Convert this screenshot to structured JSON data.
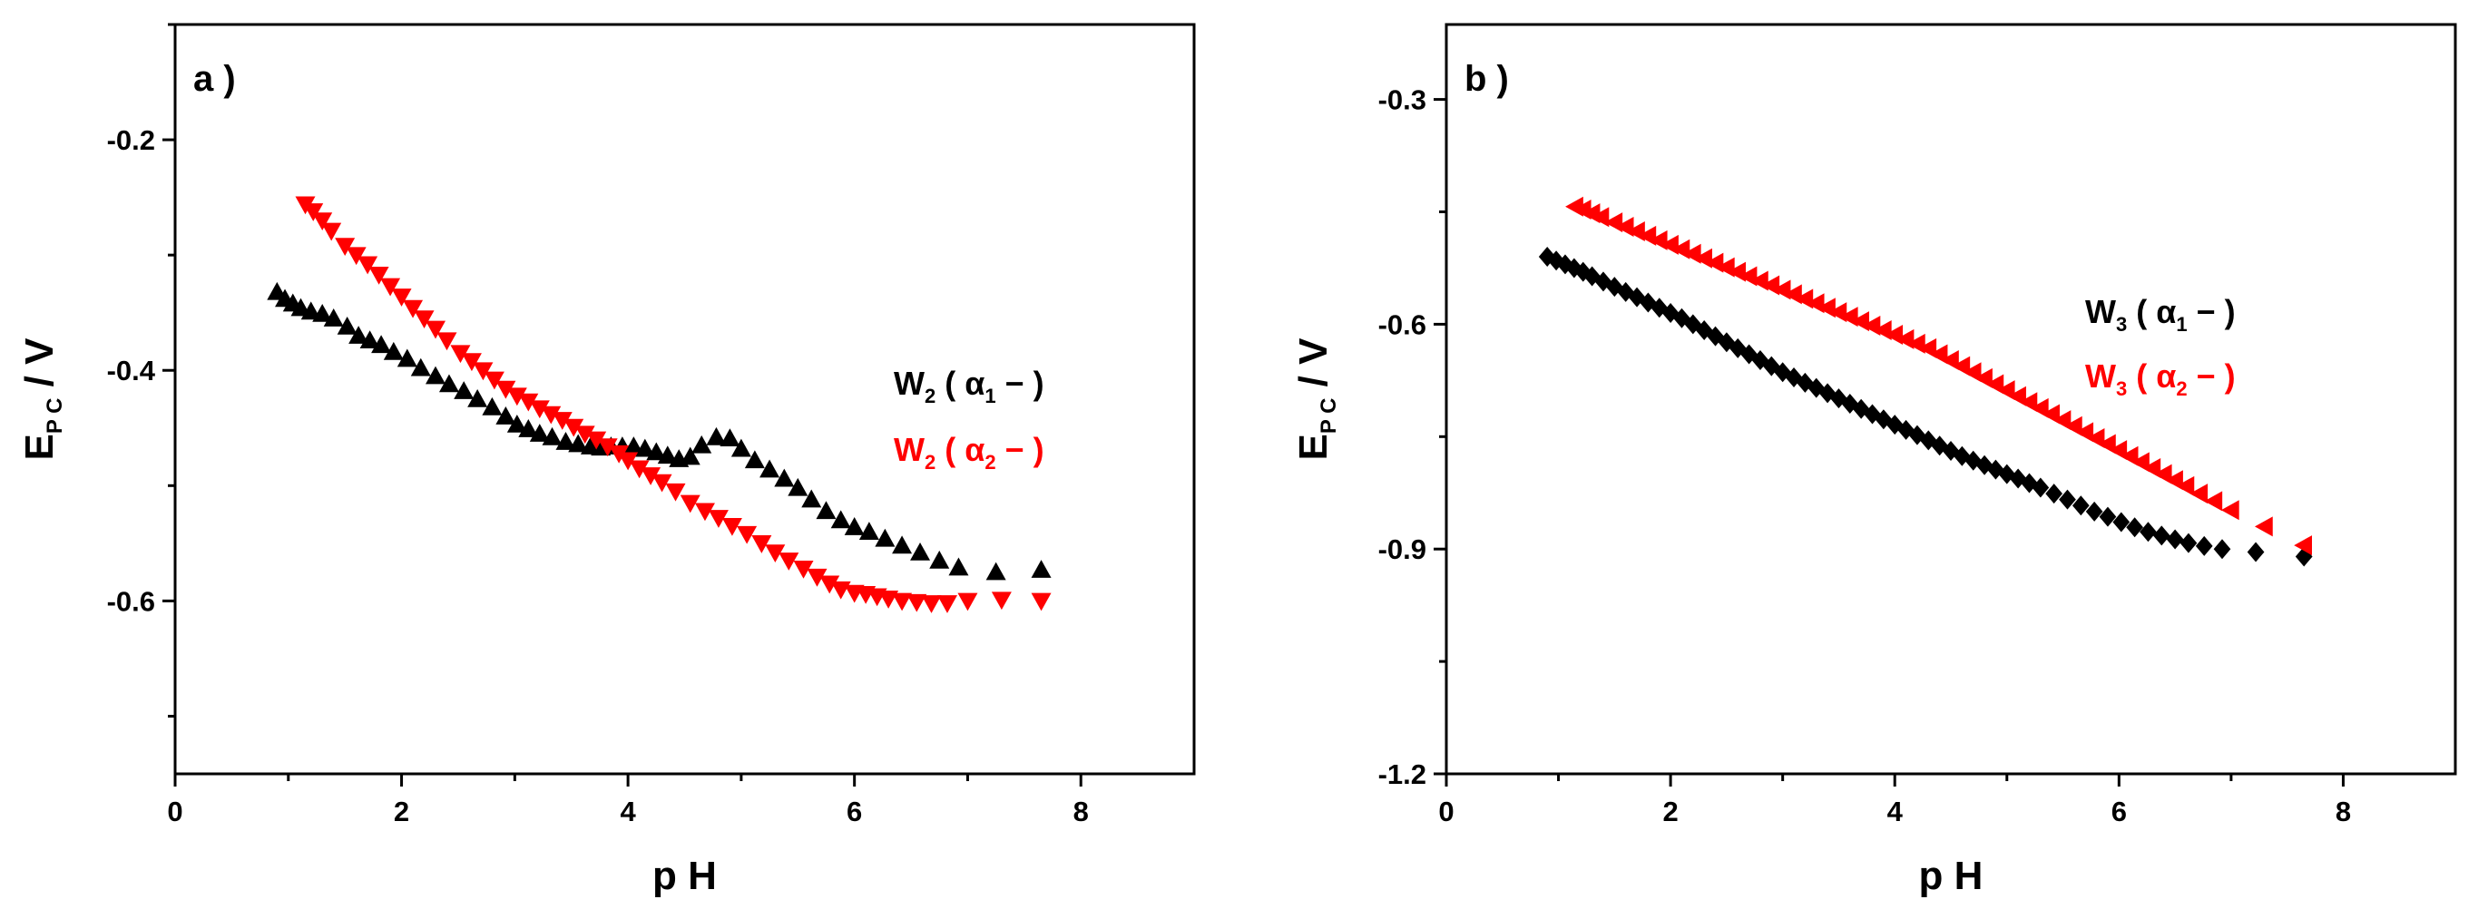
{
  "chart_data": [
    {
      "type": "scatter",
      "panel_label": "a )",
      "xlabel": "p H",
      "ylabel": {
        "main": "E",
        "sub": "P C",
        "tail": " / V"
      },
      "xlim": [
        0,
        9
      ],
      "ylim": [
        -0.75,
        -0.1
      ],
      "xticks": [
        0,
        2,
        4,
        6,
        8
      ],
      "xtick_labels": [
        "0",
        "2",
        "4",
        "6",
        "8"
      ],
      "yticks": [
        -0.2,
        -0.4,
        -0.6
      ],
      "ytick_labels": [
        "-0.2",
        "-0.4",
        "-0.6"
      ],
      "ytick_minor": [
        -0.1,
        -0.3,
        -0.5,
        -0.7
      ],
      "legend": {
        "placement": "right"
      },
      "series": [
        {
          "name": "W2(α1−)",
          "label": {
            "main": "W",
            "sub1": "2",
            "open": " ( α",
            "sub2": "1",
            "close": " − )"
          },
          "color": "#000000",
          "marker": "triangle-up",
          "x": [
            0.9,
            0.97,
            1.04,
            1.11,
            1.2,
            1.3,
            1.4,
            1.52,
            1.62,
            1.72,
            1.82,
            1.93,
            2.05,
            2.17,
            2.3,
            2.42,
            2.55,
            2.67,
            2.8,
            2.92,
            3.02,
            3.12,
            3.22,
            3.33,
            3.45,
            3.56,
            3.67,
            3.76,
            3.85,
            3.95,
            4.05,
            4.15,
            4.25,
            4.35,
            4.45,
            4.55,
            4.65,
            4.78,
            4.9,
            5.0,
            5.12,
            5.25,
            5.38,
            5.5,
            5.62,
            5.75,
            5.88,
            6.0,
            6.13,
            6.27,
            6.42,
            6.58,
            6.75,
            6.92,
            7.25,
            7.65
          ],
          "y": [
            -0.332,
            -0.338,
            -0.342,
            -0.346,
            -0.349,
            -0.351,
            -0.355,
            -0.362,
            -0.37,
            -0.374,
            -0.378,
            -0.384,
            -0.39,
            -0.398,
            -0.405,
            -0.412,
            -0.418,
            -0.425,
            -0.432,
            -0.44,
            -0.447,
            -0.451,
            -0.455,
            -0.458,
            -0.462,
            -0.464,
            -0.466,
            -0.467,
            -0.466,
            -0.466,
            -0.466,
            -0.468,
            -0.471,
            -0.474,
            -0.477,
            -0.475,
            -0.465,
            -0.458,
            -0.459,
            -0.468,
            -0.478,
            -0.486,
            -0.494,
            -0.502,
            -0.512,
            -0.522,
            -0.53,
            -0.536,
            -0.54,
            -0.546,
            -0.552,
            -0.558,
            -0.565,
            -0.571,
            -0.575,
            -0.573
          ]
        },
        {
          "name": "W2(α2−)",
          "label": {
            "main": "W",
            "sub1": "2",
            "open": " ( α",
            "sub2": "2",
            "close": " − )"
          },
          "color": "#ff0000",
          "marker": "triangle-down",
          "x": [
            1.15,
            1.22,
            1.3,
            1.38,
            1.5,
            1.6,
            1.7,
            1.8,
            1.9,
            2.0,
            2.1,
            2.2,
            2.3,
            2.4,
            2.52,
            2.62,
            2.72,
            2.82,
            2.92,
            3.02,
            3.12,
            3.22,
            3.32,
            3.42,
            3.52,
            3.62,
            3.72,
            3.82,
            3.92,
            4.0,
            4.1,
            4.2,
            4.3,
            4.42,
            4.55,
            4.68,
            4.8,
            4.92,
            5.05,
            5.18,
            5.3,
            5.42,
            5.55,
            5.67,
            5.78,
            5.88,
            6.0,
            6.1,
            6.2,
            6.3,
            6.42,
            6.55,
            6.68,
            6.82,
            7.0,
            7.3,
            7.65
          ],
          "y": [
            -0.256,
            -0.262,
            -0.27,
            -0.279,
            -0.292,
            -0.3,
            -0.308,
            -0.317,
            -0.327,
            -0.336,
            -0.346,
            -0.355,
            -0.364,
            -0.374,
            -0.385,
            -0.392,
            -0.4,
            -0.408,
            -0.416,
            -0.422,
            -0.427,
            -0.433,
            -0.438,
            -0.443,
            -0.449,
            -0.455,
            -0.46,
            -0.466,
            -0.472,
            -0.478,
            -0.485,
            -0.491,
            -0.497,
            -0.505,
            -0.515,
            -0.522,
            -0.528,
            -0.535,
            -0.542,
            -0.55,
            -0.558,
            -0.565,
            -0.572,
            -0.579,
            -0.585,
            -0.59,
            -0.593,
            -0.594,
            -0.596,
            -0.598,
            -0.6,
            -0.601,
            -0.602,
            -0.602,
            -0.6,
            -0.599,
            -0.6
          ]
        }
      ]
    },
    {
      "type": "scatter",
      "panel_label": "b )",
      "xlabel": "p H",
      "ylabel": {
        "main": "E",
        "sub": "P C",
        "tail": " / V"
      },
      "xlim": [
        0,
        9
      ],
      "ylim": [
        -1.2,
        -0.2
      ],
      "xticks": [
        0,
        2,
        4,
        6,
        8
      ],
      "xtick_labels": [
        "0",
        "2",
        "4",
        "6",
        "8"
      ],
      "yticks": [
        -0.3,
        -0.6,
        -0.9,
        -1.2
      ],
      "ytick_labels": [
        "-0.3",
        "-0.6",
        "-0.9",
        "-1.2"
      ],
      "ytick_minor": [
        -0.45,
        -0.75,
        -1.05
      ],
      "legend": {
        "placement": "right"
      },
      "series": [
        {
          "name": "W3(α1−)",
          "label": {
            "main": "W",
            "sub1": "3",
            "open": " ( α",
            "sub2": "1",
            "close": " − )"
          },
          "color": "#000000",
          "marker": "diamond",
          "x": [
            0.9,
            0.98,
            1.06,
            1.14,
            1.22,
            1.3,
            1.4,
            1.5,
            1.6,
            1.7,
            1.8,
            1.9,
            2.0,
            2.1,
            2.2,
            2.3,
            2.4,
            2.5,
            2.6,
            2.7,
            2.8,
            2.9,
            3.0,
            3.1,
            3.2,
            3.3,
            3.4,
            3.5,
            3.6,
            3.7,
            3.8,
            3.9,
            4.0,
            4.1,
            4.2,
            4.3,
            4.4,
            4.5,
            4.6,
            4.7,
            4.8,
            4.9,
            5.0,
            5.1,
            5.2,
            5.3,
            5.42,
            5.54,
            5.66,
            5.78,
            5.9,
            6.02,
            6.14,
            6.26,
            6.38,
            6.5,
            6.62,
            6.76,
            6.92,
            7.22,
            7.65
          ],
          "y": [
            -0.51,
            -0.515,
            -0.52,
            -0.525,
            -0.53,
            -0.536,
            -0.543,
            -0.55,
            -0.557,
            -0.564,
            -0.571,
            -0.578,
            -0.585,
            -0.592,
            -0.6,
            -0.608,
            -0.616,
            -0.624,
            -0.632,
            -0.64,
            -0.648,
            -0.656,
            -0.664,
            -0.671,
            -0.678,
            -0.685,
            -0.692,
            -0.699,
            -0.706,
            -0.713,
            -0.72,
            -0.727,
            -0.734,
            -0.741,
            -0.748,
            -0.755,
            -0.762,
            -0.769,
            -0.776,
            -0.782,
            -0.788,
            -0.794,
            -0.8,
            -0.806,
            -0.812,
            -0.818,
            -0.826,
            -0.834,
            -0.842,
            -0.85,
            -0.857,
            -0.864,
            -0.871,
            -0.877,
            -0.882,
            -0.887,
            -0.892,
            -0.896,
            -0.9,
            -0.904,
            -0.91
          ]
        },
        {
          "name": "W3(α2−)",
          "label": {
            "main": "W",
            "sub1": "3",
            "open": " ( α",
            "sub2": "2",
            "close": " − )"
          },
          "color": "#ff0000",
          "marker": "triangle-left",
          "x": [
            1.15,
            1.22,
            1.3,
            1.38,
            1.5,
            1.6,
            1.7,
            1.8,
            1.9,
            2.0,
            2.1,
            2.2,
            2.3,
            2.4,
            2.5,
            2.6,
            2.7,
            2.8,
            2.9,
            3.0,
            3.1,
            3.2,
            3.3,
            3.4,
            3.5,
            3.6,
            3.7,
            3.8,
            3.9,
            4.0,
            4.1,
            4.2,
            4.3,
            4.4,
            4.5,
            4.6,
            4.7,
            4.8,
            4.9,
            5.0,
            5.1,
            5.2,
            5.3,
            5.4,
            5.5,
            5.6,
            5.7,
            5.8,
            5.9,
            6.0,
            6.1,
            6.2,
            6.3,
            6.4,
            6.5,
            6.6,
            6.72,
            6.85,
            7.0,
            7.3,
            7.65
          ],
          "y": [
            -0.443,
            -0.447,
            -0.452,
            -0.457,
            -0.464,
            -0.47,
            -0.476,
            -0.482,
            -0.488,
            -0.494,
            -0.5,
            -0.506,
            -0.512,
            -0.518,
            -0.524,
            -0.53,
            -0.536,
            -0.542,
            -0.548,
            -0.554,
            -0.56,
            -0.566,
            -0.572,
            -0.578,
            -0.584,
            -0.59,
            -0.596,
            -0.602,
            -0.608,
            -0.614,
            -0.62,
            -0.626,
            -0.632,
            -0.64,
            -0.648,
            -0.656,
            -0.664,
            -0.672,
            -0.68,
            -0.688,
            -0.696,
            -0.704,
            -0.712,
            -0.72,
            -0.728,
            -0.736,
            -0.744,
            -0.752,
            -0.76,
            -0.768,
            -0.776,
            -0.784,
            -0.792,
            -0.8,
            -0.808,
            -0.816,
            -0.826,
            -0.836,
            -0.848,
            -0.87,
            -0.895
          ]
        }
      ]
    }
  ]
}
